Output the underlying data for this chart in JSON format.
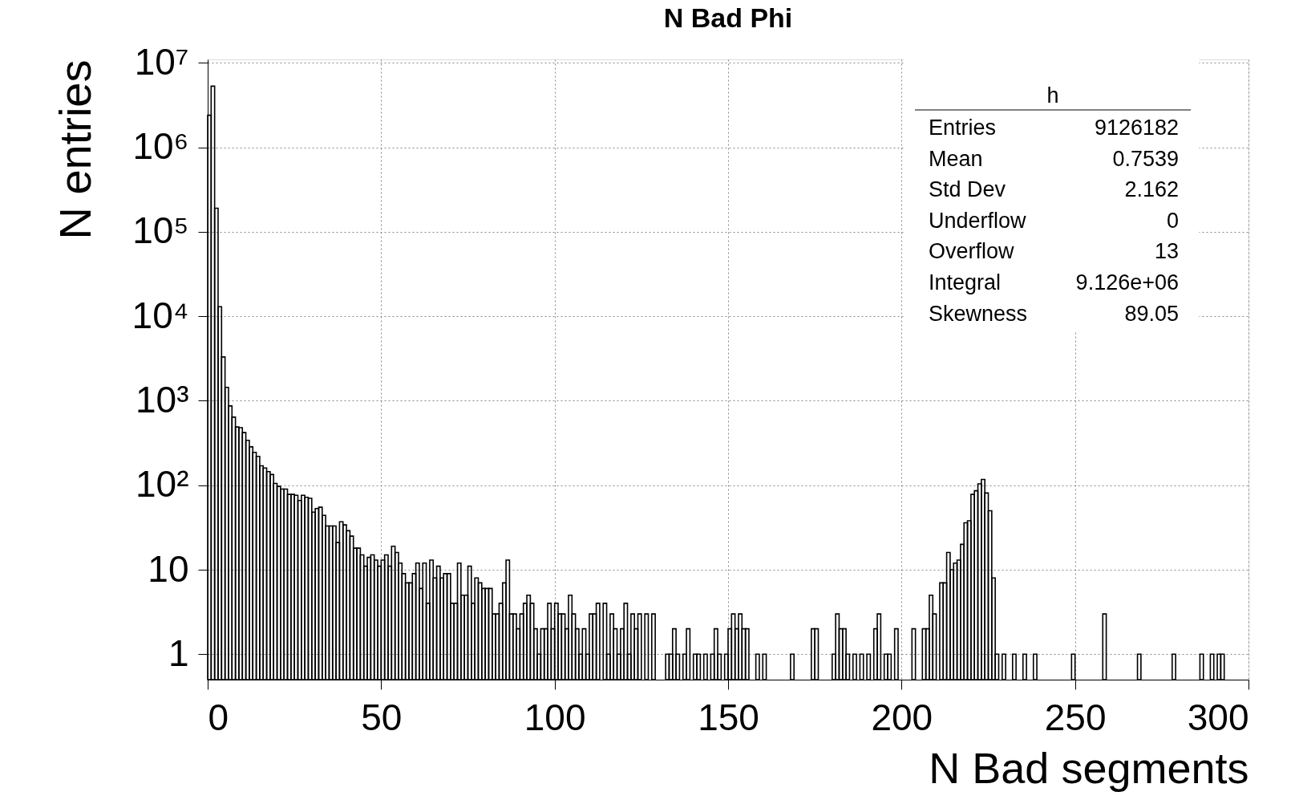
{
  "chart_data": {
    "type": "histogram",
    "title": "N Bad Phi",
    "xlabel": "N Bad segments",
    "ylabel": "N entries",
    "color": "#000000",
    "log": "y",
    "grid": true,
    "xlim": [
      0,
      300
    ],
    "xticks": [
      0,
      50,
      100,
      150,
      200,
      250,
      300
    ],
    "ylim": [
      0.5,
      11000000
    ],
    "yticks": [
      1,
      10,
      {
        "value": 100,
        "label": "10²"
      },
      {
        "value": 1000,
        "label": "10³"
      },
      {
        "value": 10000,
        "label": "10⁴"
      },
      {
        "value": 100000,
        "label": "10⁵"
      },
      {
        "value": 1000000,
        "label": "10⁶"
      },
      {
        "value": 10000000,
        "label": "10⁷"
      }
    ],
    "annotations": [
      "h",
      "Entries",
      "9126182",
      "Mean",
      "0.7539",
      "Std Dev",
      "2.162",
      "Underflow",
      "0",
      "Overflow",
      "13",
      "Integral",
      "9.126e+06",
      "Skewness",
      "89.05"
    ],
    "bins": [
      0,
      1,
      2,
      3,
      4,
      5,
      6,
      7,
      8,
      9,
      10,
      11,
      12,
      13,
      14,
      15,
      16,
      17,
      18,
      19,
      20,
      21,
      22,
      23,
      24,
      25,
      26,
      27,
      28,
      29,
      30,
      31,
      32,
      33,
      34,
      35,
      36,
      37,
      38,
      39,
      40,
      41,
      42,
      43,
      44,
      45,
      46,
      47,
      48,
      49,
      50,
      51,
      52,
      53,
      54,
      55,
      56,
      57,
      58,
      59,
      60,
      61,
      62,
      63,
      64,
      65,
      66,
      67,
      68,
      69,
      70,
      71,
      72,
      73,
      74,
      75,
      76,
      77,
      78,
      79,
      80,
      81,
      82,
      83,
      84,
      85,
      86,
      87,
      88,
      89,
      90,
      91,
      92,
      93,
      94,
      95,
      96,
      97,
      98,
      99,
      100,
      101,
      102,
      103,
      104,
      105,
      106,
      107,
      108,
      109,
      110,
      111,
      112,
      113,
      114,
      115,
      116,
      117,
      118,
      119,
      120,
      121,
      122,
      123,
      124,
      125,
      126,
      127,
      128,
      129,
      130,
      131,
      132,
      133,
      134,
      135,
      136,
      137,
      138,
      139,
      140,
      141,
      142,
      143,
      144,
      145,
      146,
      147,
      148,
      149,
      150,
      151,
      152,
      153,
      154,
      155,
      156,
      157,
      158,
      159,
      160,
      161,
      162,
      163,
      164,
      165,
      166,
      167,
      168,
      169,
      170,
      171,
      172,
      173,
      174,
      175,
      176,
      177,
      178,
      179,
      180,
      181,
      182,
      183,
      184,
      185,
      186,
      187,
      188,
      189,
      190,
      191,
      192,
      193,
      194,
      195,
      196,
      197,
      198,
      199,
      200,
      201,
      202,
      203,
      204,
      205,
      206,
      207,
      208,
      209,
      210,
      211,
      212,
      213,
      214,
      215,
      216,
      217,
      218,
      219,
      220,
      221,
      222,
      223,
      224,
      225,
      226,
      227,
      228,
      229,
      230,
      231,
      232,
      233,
      234,
      235,
      236,
      237,
      238,
      239,
      240,
      241,
      242,
      243,
      244,
      245,
      246,
      247,
      248,
      249,
      250,
      251,
      252,
      253,
      254,
      255,
      256,
      257,
      258,
      259,
      260,
      261,
      262,
      263,
      264,
      265,
      266,
      267,
      268,
      269,
      270,
      271,
      272,
      273,
      274,
      275,
      276,
      277,
      278,
      279,
      280,
      281,
      282,
      283,
      284,
      285,
      286,
      287,
      288,
      289,
      290,
      291,
      292,
      293,
      294,
      295,
      296,
      297,
      298,
      299,
      300
    ],
    "values": [
      2400000,
      5300000,
      190000,
      13000,
      3300,
      1440,
      870,
      640,
      490,
      480,
      420,
      340,
      285,
      245,
      220,
      170,
      160,
      145,
      134,
      105,
      97,
      90,
      90,
      78,
      78,
      76,
      66,
      76,
      72,
      70,
      48,
      53,
      55,
      44,
      33,
      33,
      33,
      21,
      37,
      34,
      29,
      25,
      18,
      18,
      15,
      11,
      14,
      15,
      13,
      11,
      13,
      15,
      11,
      19,
      16,
      12,
      9,
      7,
      7,
      9,
      12,
      6,
      12,
      4,
      13,
      8,
      11,
      8,
      9,
      9,
      4,
      4,
      12,
      5,
      5,
      11,
      4,
      8,
      7,
      6,
      6,
      6,
      3,
      3,
      4,
      7,
      13,
      3,
      3,
      2,
      3,
      4,
      5,
      4,
      2,
      1,
      2,
      2,
      4,
      2,
      4,
      3,
      3,
      2,
      5,
      3,
      2,
      1,
      2,
      1,
      3,
      3,
      4,
      null,
      4,
      1,
      3,
      2,
      1,
      2,
      4,
      1,
      3,
      2,
      3,
      null,
      3,
      null,
      3,
      null,
      null,
      null,
      1,
      1,
      2,
      1,
      null,
      1,
      2,
      null,
      1,
      1,
      null,
      1,
      null,
      1,
      2,
      1,
      null,
      1,
      2,
      3,
      2,
      3,
      2,
      2,
      null,
      null,
      1,
      null,
      1,
      null,
      null,
      null,
      null,
      null,
      null,
      null,
      1,
      null,
      null,
      null,
      null,
      null,
      2,
      2,
      null,
      null,
      null,
      null,
      1,
      3,
      2,
      2,
      1,
      null,
      1,
      null,
      1,
      null,
      1,
      null,
      2,
      3,
      null,
      1,
      1,
      null,
      2,
      null,
      null,
      null,
      null,
      2,
      null,
      null,
      2,
      2,
      5,
      3,
      null,
      7,
      7,
      16,
      10,
      12,
      13,
      20,
      36,
      38,
      78,
      86,
      104,
      117,
      81,
      50,
      8,
      1,
      null,
      1,
      null,
      null,
      1,
      null,
      null,
      1,
      null,
      null,
      1,
      null,
      null,
      null,
      null,
      null,
      null,
      null,
      null,
      null,
      null,
      1,
      null,
      null,
      null,
      null,
      null,
      null,
      null,
      null,
      3,
      null,
      null,
      null,
      null,
      null,
      null,
      null,
      null,
      null,
      1,
      null,
      null,
      null,
      null,
      null,
      null,
      null,
      null,
      null,
      1,
      null,
      null,
      null,
      null,
      null,
      null,
      null,
      1,
      null,
      null,
      1,
      null,
      1,
      1,
      null,
      null,
      null,
      null,
      null,
      null,
      null
    ]
  }
}
